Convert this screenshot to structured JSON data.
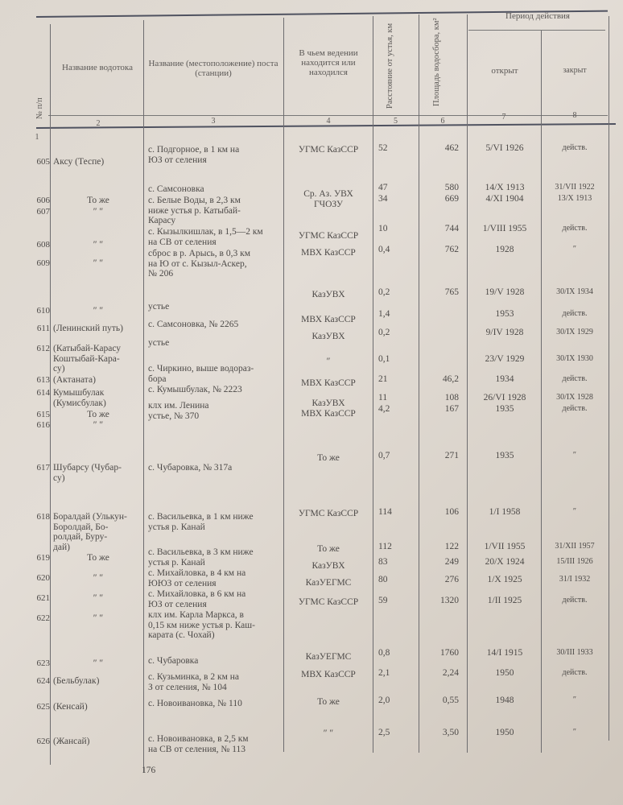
{
  "header": {
    "col1": "№ п/п",
    "col2": "Название водотока",
    "col3": "Название (местоположение) поста (станции)",
    "col4": "В чьем ведении находится или находился",
    "col5": "Расстояние от устья, км",
    "col6": "Площадь водосбора, км²",
    "period": "Период действия",
    "col7": "открыт",
    "col8": "закрыт",
    "numbers": [
      "1",
      "2",
      "3",
      "4",
      "5",
      "6",
      "7",
      "8"
    ]
  },
  "rows": [
    {
      "n": "605",
      "river": "Аксу (Теспе)",
      "post": "с. Подгорное, в 1 км на\nЮЗ от селения",
      "agency": "УГМС КазССР",
      "dist": "52",
      "area": "462",
      "opened": "5/VI 1926",
      "closed": "действ."
    },
    {
      "n": "606",
      "river": "То же",
      "post": "с. Самсоновка",
      "agency": "Ср. Аз. УВХ",
      "dist": "47",
      "area": "580",
      "opened": "14/X 1913",
      "closed": "31/VII 1922"
    },
    {
      "n": "607",
      "river": "″ ″",
      "post": "с. Белые Воды, в 2,3 км\nниже устья р. Катыбай-\nКарасу",
      "agency": "ГЧОЗУ",
      "dist": "34",
      "area": "669",
      "opened": "4/XI 1904",
      "closed": "13/X 1913"
    },
    {
      "n": "608",
      "river": "″ ″",
      "post": "с. Кызылкишлак, в 1,5—2 км\nна СВ от селения",
      "agency": "УГМС КазССР",
      "dist": "10",
      "area": "744",
      "opened": "1/VIII 1955",
      "closed": "действ."
    },
    {
      "n": "609",
      "river": "″ ″",
      "post": "сброс в р. Арысь, в 0,3 км\nна Ю от с. Кызыл-Аскер,\n№ 206",
      "agency": "МВХ КазССР",
      "dist": "0,4",
      "area": "762",
      "opened": "1928",
      "closed": "″"
    },
    {
      "n": "610",
      "river": "″ ″",
      "post": "устье",
      "agency": "КазУВХ",
      "dist": "0,2",
      "area": "765",
      "opened": "19/V 1928",
      "closed": "30/IX 1934"
    },
    {
      "n": "611",
      "river": "(Ленинский путь)",
      "post": "с. Самсоновка, № 2265",
      "agency": "МВХ КазССР",
      "dist": "1,4",
      "area": "",
      "opened": "1953",
      "closed": "действ."
    },
    {
      "n": "612",
      "river": "(Катыбай-Карасу\nКоштыбай-Кара-\nсу)",
      "post": "устье",
      "agency": "КазУВХ",
      "dist": "0,2",
      "area": "",
      "opened": "9/IV 1928",
      "closed": "30/IX 1929"
    },
    {
      "n": "613",
      "river": "(Актаната)",
      "post": "с. Чиркино, выше водораз-\nбора",
      "agency": "″",
      "dist": "0,1",
      "area": "",
      "opened": "23/V 1929",
      "closed": "30/IX 1930"
    },
    {
      "n": "614",
      "river": "Кумышбулак\n(Кумисбулак)",
      "post": "с. Кумышбулак, № 2223",
      "agency": "МВХ КазССР",
      "dist": "21",
      "area": "46,2",
      "opened": "1934",
      "closed": "действ."
    },
    {
      "n": "615",
      "river": "То же",
      "post": "клх им. Ленина",
      "agency": "КазУВХ",
      "dist": "11",
      "area": "108",
      "opened": "26/VI 1928",
      "closed": "30/IX 1928"
    },
    {
      "n": "616",
      "river": "″ ″",
      "post": "устье, № 370",
      "agency": "МВХ КазССР",
      "dist": "4,2",
      "area": "167",
      "opened": "1935",
      "closed": "действ."
    },
    {
      "n": "617",
      "river": "Шубарсу (Чубар-\nсу)",
      "post": "с. Чубаровка, № 317а",
      "agency": "То же",
      "dist": "0,7",
      "area": "271",
      "opened": "1935",
      "closed": "″"
    },
    {
      "n": "618",
      "river": "Боралдай (Улькун-\nБоролдай, Бо-\nролдай, Буру-\nдай)",
      "post": "с. Васильевка, в 1 км ниже\nустья р. Канай",
      "agency": "УГМС КазССР",
      "dist": "114",
      "area": "106",
      "opened": "1/I 1958",
      "closed": "″"
    },
    {
      "n": "619",
      "river": "То же",
      "post": "с. Васильевка, в 3 км ниже\nустья р. Канай",
      "agency": "То же",
      "dist": "112",
      "area": "122",
      "opened": "1/VII 1955",
      "closed": "31/XII 1957"
    },
    {
      "n": "620",
      "river": "″ ″",
      "post": "с. Михайловка, в 4 км на\nЮЮЗ от селения",
      "agency": "КазУВХ",
      "dist": "83",
      "area": "249",
      "opened": "20/X 1924",
      "closed": "15/III 1926"
    },
    {
      "n": "621",
      "river": "″ ″",
      "post": "с. Михайловка, в 6 км на\nЮЗ от селения",
      "agency": "КазУЕГМС",
      "dist": "80",
      "area": "276",
      "opened": "1/X 1925",
      "closed": "31/I 1932"
    },
    {
      "n": "622",
      "river": "″ ″",
      "post": "клх им. Карла Маркса, в\n0,15 км ниже устья р. Каш-\nкарата (с. Чохай)",
      "agency": "УГМС КазССР",
      "dist": "59",
      "area": "1320",
      "opened": "1/II 1925",
      "closed": "действ."
    },
    {
      "n": "623",
      "river": "″ ″",
      "post": "с. Чубаровка",
      "agency": "КазУЕГМС",
      "dist": "0,8",
      "area": "1760",
      "opened": "14/I 1915",
      "closed": "30/III 1933"
    },
    {
      "n": "624",
      "river": "(Бельбулак)",
      "post": "с. Кузьминка, в 2 км на\nЗ от селения, № 104",
      "agency": "МВХ КазССР",
      "dist": "2,1",
      "area": "2,24",
      "opened": "1950",
      "closed": "действ."
    },
    {
      "n": "625",
      "river": "(Кенсай)",
      "post": "с. Новоивановка, № 110",
      "agency": "То же",
      "dist": "2,0",
      "area": "0,55",
      "opened": "1948",
      "closed": "″"
    },
    {
      "n": "626",
      "river": "(Жансай)",
      "post": "с. Новоивановка, в 2,5 км\nна СВ от селения, № 113",
      "agency": "″ ″",
      "dist": "2,5",
      "area": "3,50",
      "opened": "1950",
      "closed": "″"
    }
  ],
  "page_number": "176"
}
